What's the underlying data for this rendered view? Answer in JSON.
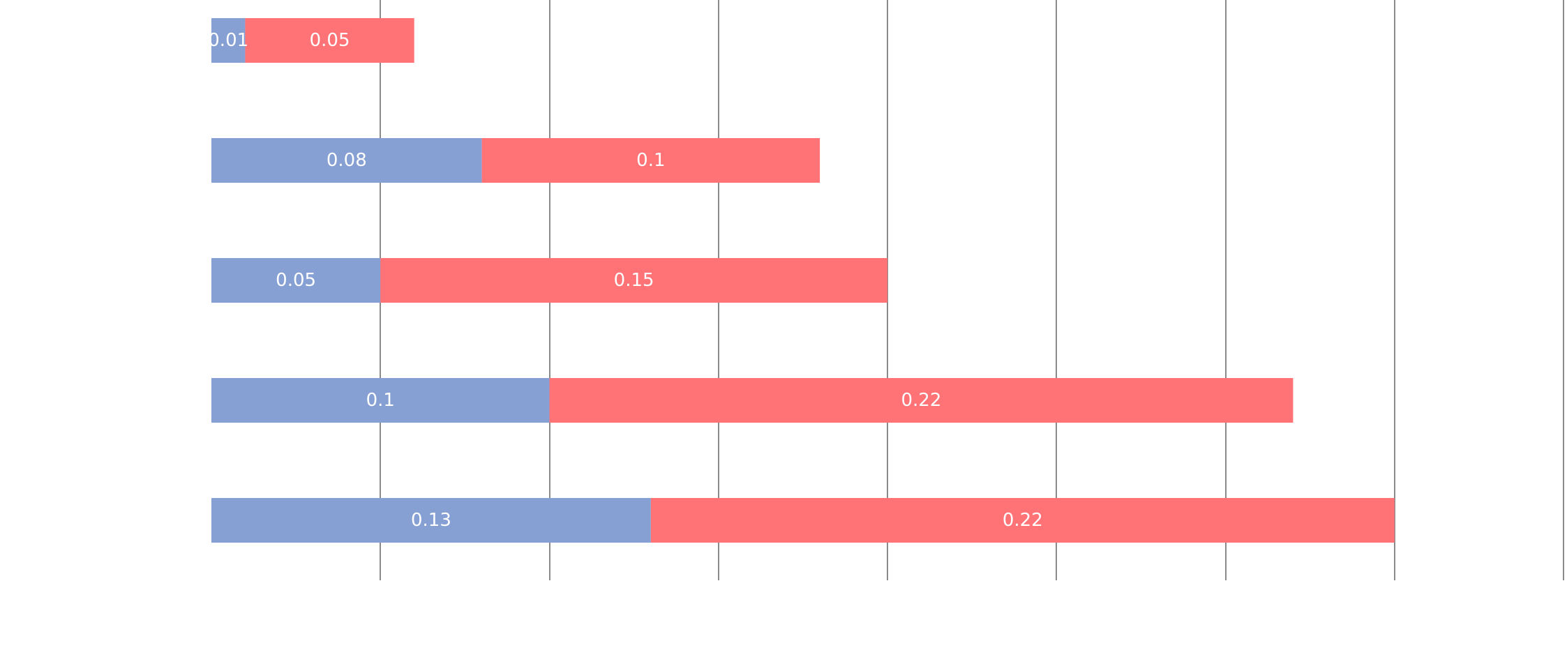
{
  "chart_data": {
    "type": "bar",
    "orientation": "horizontal",
    "stacked": true,
    "xlim": [
      0,
      0.4
    ],
    "grid": true,
    "x_gridlines": [
      0.05,
      0.1,
      0.15,
      0.2,
      0.25,
      0.3,
      0.35,
      0.4
    ],
    "series": [
      {
        "color": "#86a0d3",
        "values": [
          0.01,
          0.08,
          0.05,
          0.1,
          0.13
        ],
        "labels": [
          "0.01",
          "0.08",
          "0.05",
          "0.1",
          "0.13"
        ]
      },
      {
        "color": "#ff7377",
        "values": [
          0.05,
          0.1,
          0.15,
          0.22,
          0.22
        ],
        "labels": [
          "0.05",
          "0.1",
          "0.15",
          "0.22",
          "0.22"
        ]
      }
    ]
  }
}
